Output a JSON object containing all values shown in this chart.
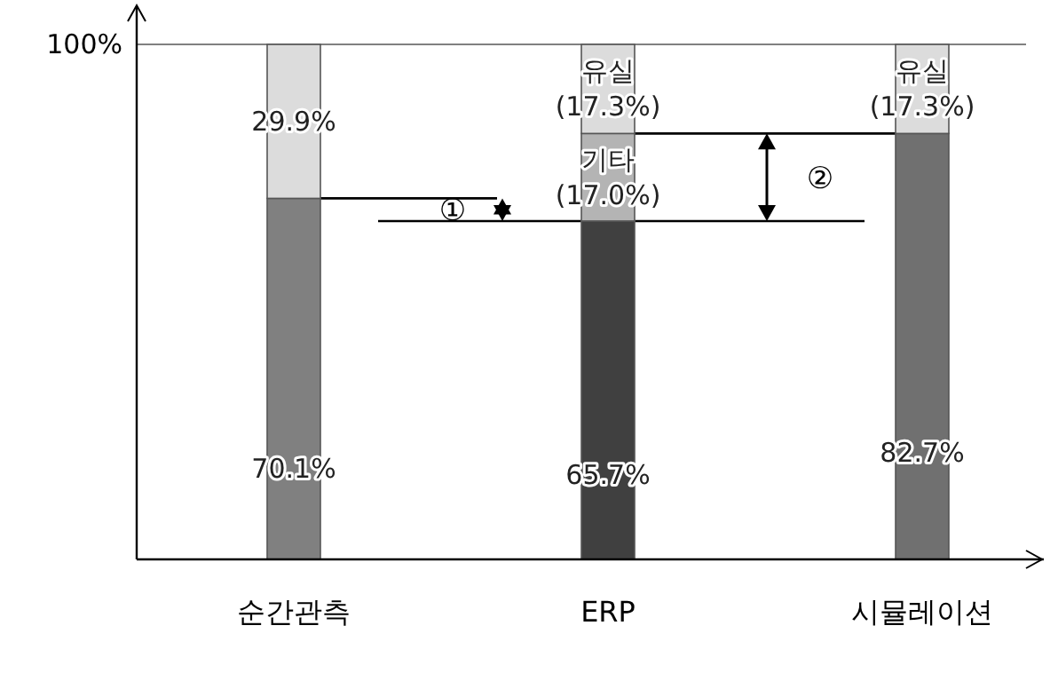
{
  "chart_data": {
    "type": "bar",
    "stacked": true,
    "categories": [
      "순간관측",
      "ERP",
      "시뮬레이션"
    ],
    "ylim": [
      0,
      100
    ],
    "yticks": [
      {
        "value": 100,
        "label": "100%"
      }
    ],
    "series": [
      {
        "colors": [
          "#808080",
          "#404040",
          "#707070"
        ],
        "values": [
          70.1,
          65.7,
          82.7
        ],
        "value_labels": [
          "70.1%",
          "65.7%",
          "82.7%"
        ]
      },
      {
        "color": "#b4b4b4",
        "values": [
          null,
          17.0,
          null
        ],
        "value_labels": [
          null,
          "기타\n(17.0%)",
          null
        ]
      },
      {
        "color": "#dcdcdc",
        "values": [
          29.9,
          17.3,
          17.3
        ],
        "value_labels": [
          "29.9%",
          "유실\n(17.3%)",
          "유실\n(17.3%)"
        ]
      }
    ],
    "ref_lines": [
      {
        "axis": "y",
        "value": 100,
        "color": "#808080"
      },
      {
        "axis": "y",
        "value": 70.1,
        "color": "#000000"
      },
      {
        "axis": "y",
        "value": 65.7,
        "color": "#000000"
      },
      {
        "axis": "y",
        "value": 82.7,
        "color": "#000000"
      }
    ],
    "annotations": [
      "①",
      "②"
    ]
  }
}
